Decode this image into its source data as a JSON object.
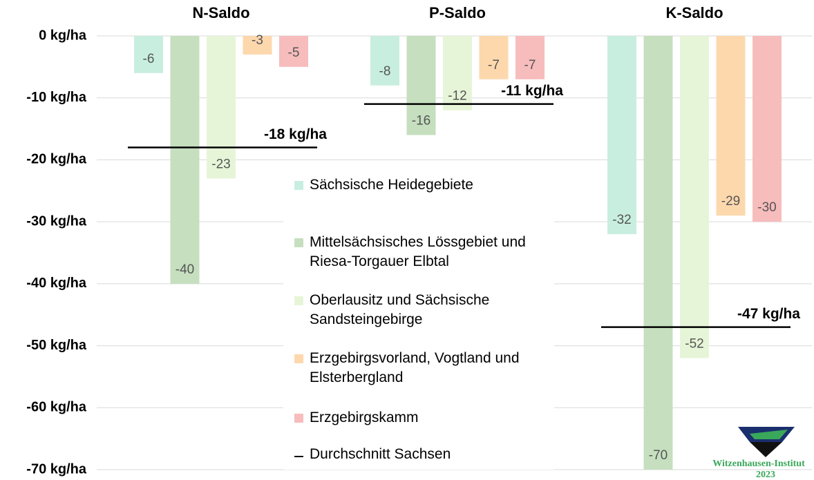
{
  "chart_data": {
    "type": "bar",
    "categories": [
      "N-Saldo",
      "P-Saldo",
      "K-Saldo"
    ],
    "series": [
      {
        "name": "Sächsische Heidegebiete",
        "color": "#c8eedf",
        "values": [
          -6,
          -8,
          -32
        ]
      },
      {
        "name": "Mittelsächsisches Lössgebiet und Riesa-Torgauer Elbtal",
        "color": "#c5dfbf",
        "values": [
          -40,
          -16,
          -70
        ]
      },
      {
        "name": "Oberlausitz und Sächsische Sandsteingebirge",
        "color": "#e6f5d7",
        "values": [
          -23,
          -12,
          -52
        ]
      },
      {
        "name": "Erzgebirgsvorland, Vogtland und Elsterbergland",
        "color": "#fdd8ad",
        "values": [
          -3,
          -7,
          -29
        ]
      },
      {
        "name": "Erzgebirgskamm",
        "color": "#f7bcbc",
        "values": [
          -5,
          -7,
          -30
        ]
      }
    ],
    "averages": {
      "name": "Durchschnitt Sachsen",
      "color": "#000000",
      "values": [
        -18,
        -11,
        -47
      ],
      "value_labels": [
        "-18 kg/ha",
        "-11 kg/ha",
        "-47 kg/ha"
      ]
    },
    "ylim": [
      -70,
      0
    ],
    "yticks": [
      {
        "value": 0,
        "label": "0 kg/ha"
      },
      {
        "value": -10,
        "label": "-10 kg/ha"
      },
      {
        "value": -20,
        "label": "-20 kg/ha"
      },
      {
        "value": -30,
        "label": "-30 kg/ha"
      },
      {
        "value": -40,
        "label": "-40 kg/ha"
      },
      {
        "value": -50,
        "label": "-50 kg/ha"
      },
      {
        "value": -60,
        "label": "-60 kg/ha"
      },
      {
        "value": -70,
        "label": "-70 kg/ha"
      }
    ],
    "grid": true,
    "logo": {
      "text": "Witzenhausen-Institut",
      "year": "2023"
    }
  }
}
